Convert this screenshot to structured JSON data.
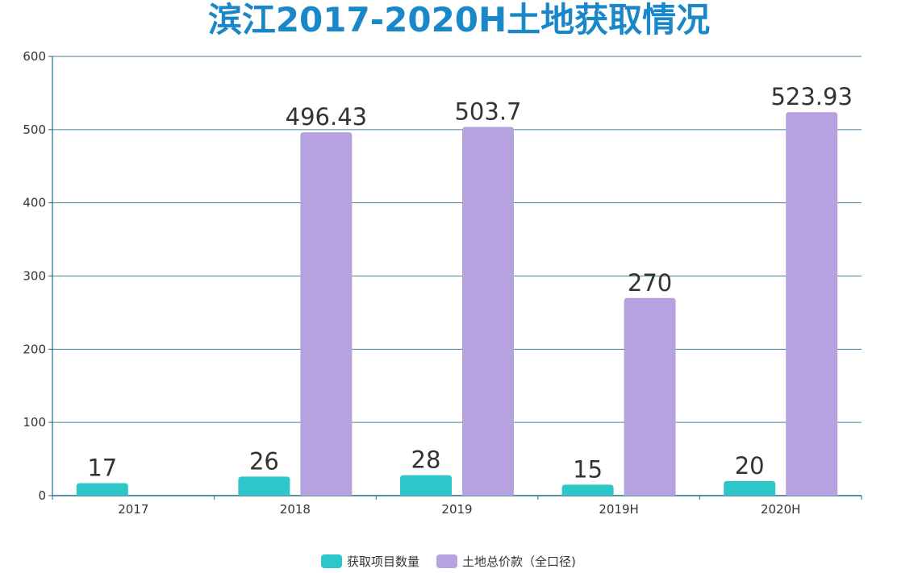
{
  "chart_data": {
    "type": "bar",
    "title": "滨江2017-2020H土地获取情况",
    "categories": [
      "2017",
      "2018",
      "2019",
      "2019H",
      "2020H"
    ],
    "series": [
      {
        "name": "获取项目数量",
        "color": "#2ec7c9",
        "values": [
          17,
          26,
          28,
          15,
          20
        ],
        "labels": [
          "17",
          "26",
          "28",
          "15",
          "20"
        ]
      },
      {
        "name": "土地总价款（全口径)",
        "color": "#b6a2de",
        "values": [
          null,
          496.43,
          503.7,
          270,
          523.93
        ],
        "labels": [
          "",
          "496.43",
          "503.7",
          "270",
          "523.93"
        ]
      }
    ],
    "ylim": [
      0,
      600
    ],
    "yticks": [
      "0",
      "100",
      "200",
      "300",
      "400",
      "500",
      "600"
    ],
    "grid": true,
    "legend_position": "bottom",
    "xlabel": "",
    "ylabel": ""
  }
}
